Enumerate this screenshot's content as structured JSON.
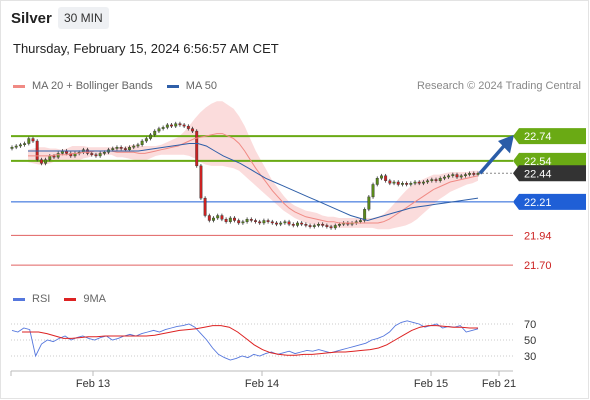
{
  "header": {
    "symbol": "Silver",
    "timeframe": "30 MIN",
    "timestamp": "Thursday, February 15, 2024 6:56:57 AM CET",
    "copyright": "Research © 2024 Trading Central"
  },
  "legend": {
    "ma20_label": "MA 20 + Bollinger Bands",
    "ma20_color": "#f08a84",
    "ma50_label": "MA 50",
    "ma50_color": "#2f5fa8"
  },
  "rsi_legend": {
    "rsi_label": "RSI",
    "rsi_color": "#5577dd",
    "ma9_label": "9MA",
    "ma9_color": "#dd2222"
  },
  "colors": {
    "resistance_green": "#6aaa14",
    "current_price_bg": "#333333",
    "pivot_blue": "#1f5fd6",
    "support_red": "#e06060",
    "candle_up": "#5a8a1a",
    "candle_down": "#cc2222",
    "band_fill": "#f8c0c0",
    "arrow": "#2a5ca8"
  },
  "chart_data": {
    "type": "candlestick",
    "x_labels": [
      "Feb 13",
      "Feb 14",
      "Feb 15",
      "Feb 21"
    ],
    "ylim": [
      21.5,
      22.95
    ],
    "price_levels": [
      {
        "label": "22.74",
        "value": 22.74,
        "kind": "resistance"
      },
      {
        "label": "22.54",
        "value": 22.54,
        "kind": "resistance"
      },
      {
        "label": "22.44",
        "value": 22.44,
        "kind": "current"
      },
      {
        "label": "22.21",
        "value": 22.21,
        "kind": "pivot"
      },
      {
        "label": "21.94",
        "value": 21.94,
        "kind": "support"
      },
      {
        "label": "21.70",
        "value": 21.7,
        "kind": "support"
      }
    ],
    "close": [
      22.65,
      22.66,
      22.67,
      22.68,
      22.72,
      22.7,
      22.55,
      22.52,
      22.55,
      22.58,
      22.57,
      22.6,
      22.62,
      22.6,
      22.58,
      22.6,
      22.61,
      22.63,
      22.6,
      22.59,
      22.58,
      22.6,
      22.61,
      22.63,
      22.64,
      22.65,
      22.64,
      22.63,
      22.65,
      22.66,
      22.67,
      22.7,
      22.72,
      22.75,
      22.78,
      22.8,
      22.81,
      22.83,
      22.82,
      22.84,
      22.83,
      22.82,
      22.8,
      22.78,
      22.5,
      22.24,
      22.1,
      22.06,
      22.08,
      22.1,
      22.07,
      22.05,
      22.08,
      22.06,
      22.04,
      22.05,
      22.07,
      22.06,
      22.05,
      22.04,
      22.06,
      22.05,
      22.04,
      22.03,
      22.04,
      22.05,
      22.03,
      22.02,
      22.04,
      22.03,
      22.02,
      22.01,
      22.02,
      22.03,
      22.02,
      22.01,
      22.0,
      22.02,
      22.03,
      22.04,
      22.03,
      22.04,
      22.05,
      22.06,
      22.15,
      22.25,
      22.35,
      22.4,
      22.42,
      22.38,
      22.36,
      22.37,
      22.35,
      22.36,
      22.35,
      22.36,
      22.37,
      22.36,
      22.37,
      22.38,
      22.39,
      22.38,
      22.4,
      22.41,
      22.42,
      22.43,
      22.41,
      22.42,
      22.43,
      22.44,
      22.43,
      22.44
    ],
    "ma20": [
      22.58,
      22.58,
      22.58,
      22.58,
      22.58,
      22.59,
      22.59,
      22.59,
      22.6,
      22.6,
      22.61,
      22.61,
      22.62,
      22.62,
      22.62,
      22.62,
      22.61,
      22.61,
      22.61,
      22.61,
      22.6,
      22.6,
      22.61,
      22.62,
      22.63,
      22.64,
      22.65,
      22.66,
      22.68,
      22.7,
      22.72,
      22.73,
      22.74,
      22.75,
      22.76,
      22.76,
      22.74,
      22.72,
      22.68,
      22.62,
      22.55,
      22.48,
      22.42,
      22.36,
      22.3,
      22.25,
      22.2,
      22.16,
      22.13,
      22.11,
      22.09,
      22.08,
      22.07,
      22.06,
      22.05,
      22.05,
      22.04,
      22.04,
      22.04,
      22.04,
      22.04,
      22.04,
      22.04,
      22.04,
      22.05,
      22.07,
      22.1,
      22.13,
      22.16,
      22.19,
      22.22,
      22.25,
      22.28,
      22.31,
      22.33,
      22.35,
      22.37,
      22.38,
      22.39,
      22.4,
      22.41,
      22.42
    ],
    "ma50": [
      22.62,
      22.62,
      22.62,
      22.62,
      22.62,
      22.62,
      22.62,
      22.62,
      22.62,
      22.62,
      22.62,
      22.62,
      22.62,
      22.62,
      22.63,
      22.64,
      22.65,
      22.66,
      22.67,
      22.68,
      22.68,
      22.66,
      22.62,
      22.58,
      22.55,
      22.52,
      22.48,
      22.44,
      22.4,
      22.37,
      22.34,
      22.31,
      22.28,
      22.25,
      22.22,
      22.19,
      22.16,
      22.13,
      22.1,
      22.08,
      22.06,
      22.08,
      22.1,
      22.12,
      22.14,
      22.16,
      22.17,
      22.18,
      22.19,
      22.2,
      22.21,
      22.22,
      22.23,
      22.24
    ],
    "rsi_ylim": [
      0,
      100
    ],
    "rsi_ticks": [
      "70",
      "50",
      "30"
    ],
    "rsi": [
      62,
      60,
      65,
      63,
      30,
      45,
      50,
      48,
      52,
      55,
      50,
      53,
      55,
      52,
      50,
      53,
      55,
      50,
      52,
      55,
      57,
      55,
      58,
      60,
      62,
      60,
      63,
      65,
      67,
      68,
      70,
      66,
      58,
      50,
      40,
      32,
      28,
      25,
      27,
      30,
      28,
      32,
      30,
      33,
      35,
      32,
      34,
      36,
      33,
      35,
      37,
      36,
      38,
      36,
      34,
      36,
      38,
      40,
      42,
      44,
      46,
      50,
      52,
      55,
      60,
      68,
      72,
      74,
      72,
      70,
      66,
      68,
      70,
      65,
      67,
      66,
      68,
      60,
      62,
      64
    ],
    "rsi_ma9": [
      60,
      60,
      60,
      58,
      55,
      52,
      52,
      53,
      54,
      54,
      55,
      55,
      55,
      55,
      55,
      55,
      56,
      58,
      60,
      62,
      63,
      64,
      66,
      68,
      68,
      66,
      60,
      52,
      44,
      38,
      34,
      32,
      31,
      31,
      32,
      32,
      33,
      34,
      35,
      35,
      36,
      37,
      38,
      40,
      44,
      50,
      56,
      62,
      66,
      68,
      68,
      67,
      66,
      66,
      65,
      65
    ]
  }
}
